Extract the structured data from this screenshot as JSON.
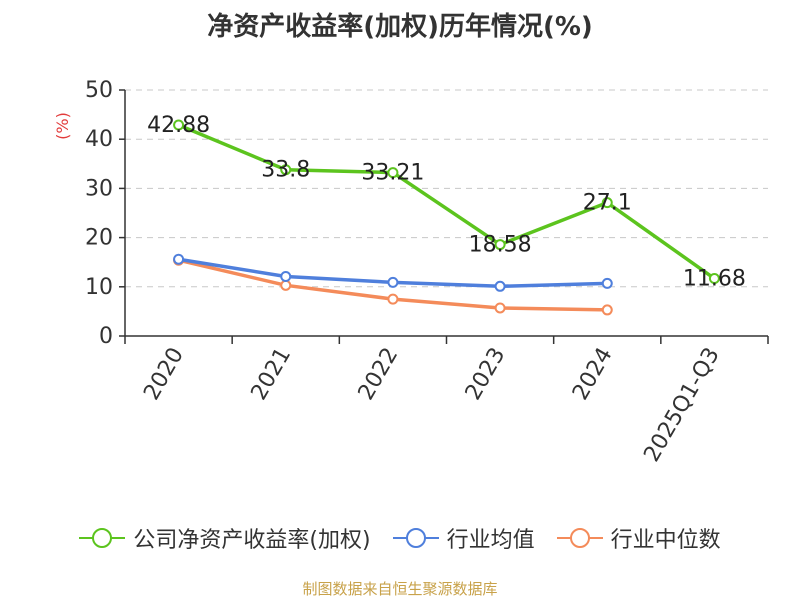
{
  "title": "净资产收益率(加权)历年情况(%)",
  "source": "制图数据来自恒生聚源数据库",
  "chart_data": {
    "type": "line",
    "title": "净资产收益率(加权)历年情况(%)",
    "ylabel": "(%)",
    "xlabel": "",
    "categories": [
      "2020",
      "2021",
      "2022",
      "2023",
      "2024",
      "2025Q1-Q3"
    ],
    "ylim": [
      0,
      50
    ],
    "yticks": [
      "0",
      "10",
      "20",
      "30",
      "40",
      "50"
    ],
    "grid": true,
    "legend_position": "bottom",
    "series": [
      {
        "name": "公司净资产收益率(加权)",
        "color": "#5cc41e",
        "values": [
          42.88,
          33.8,
          33.21,
          18.58,
          27.1,
          11.68
        ],
        "labels": [
          "42.88",
          "33.8",
          "33.21",
          "18.58",
          "27.1",
          "11.68"
        ]
      },
      {
        "name": "行业均值",
        "color": "#4f7fdc",
        "values": [
          15.6,
          12.1,
          10.9,
          10.1,
          10.7,
          null
        ]
      },
      {
        "name": "行业中位数",
        "color": "#f48b5a",
        "values": [
          15.4,
          10.3,
          7.5,
          5.7,
          5.3,
          null
        ]
      }
    ]
  }
}
